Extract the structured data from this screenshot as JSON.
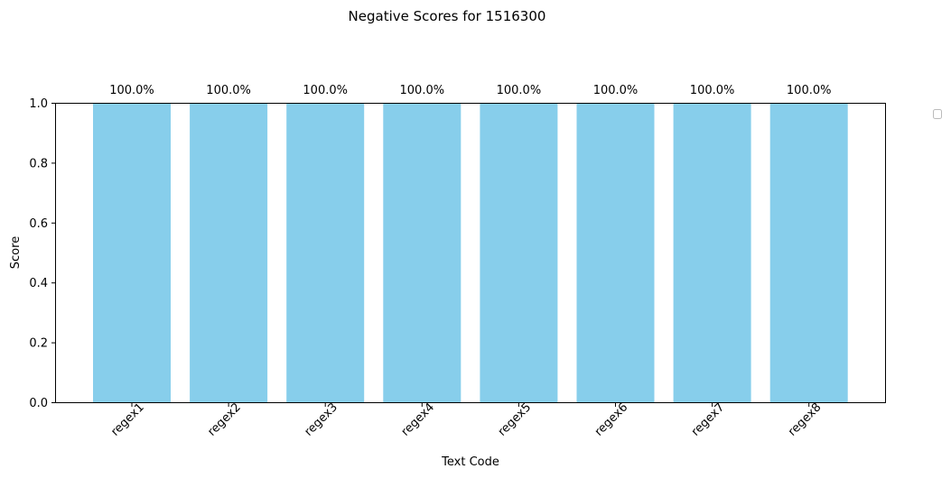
{
  "chart_data": {
    "type": "bar",
    "title": "Negative Scores for 1516300",
    "xlabel": "Text Code",
    "ylabel": "Score",
    "categories": [
      "regex1",
      "regex2",
      "regex3",
      "regex4",
      "regex5",
      "regex6",
      "regex7",
      "regex8"
    ],
    "values": [
      1.0,
      1.0,
      1.0,
      1.0,
      1.0,
      1.0,
      1.0,
      1.0
    ],
    "data_labels": [
      "100.0%",
      "100.0%",
      "100.0%",
      "100.0%",
      "100.0%",
      "100.0%",
      "100.0%",
      "100.0%"
    ],
    "ylim": [
      0,
      1.0
    ],
    "yticks": [
      "0.0",
      "0.2",
      "0.4",
      "0.6",
      "0.8",
      "1.0"
    ],
    "grid": false,
    "legend": {
      "placement": "outside-right",
      "entries": []
    },
    "bar_color": "#87ceeb"
  }
}
